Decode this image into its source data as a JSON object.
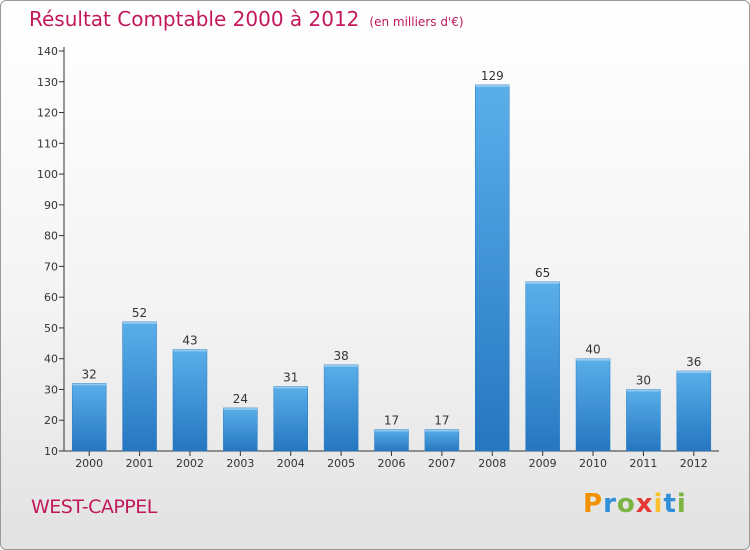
{
  "header": {
    "title": "Résultat Comptable 2000 à 2012",
    "subtitle": "(en milliers d'€)"
  },
  "footer": {
    "place": "WEST-CAPPEL",
    "logo_letters": [
      "P",
      "r",
      "o",
      "x",
      "i",
      "t",
      "i"
    ],
    "logo_colors": [
      "#f39200",
      "#2f8fd8",
      "#7cb342",
      "#e53935",
      "#fbc02d",
      "#2f8fd8",
      "#7cb342"
    ]
  },
  "chart_data": {
    "type": "bar",
    "categories": [
      "2000",
      "2001",
      "2002",
      "2003",
      "2004",
      "2005",
      "2006",
      "2007",
      "2008",
      "2009",
      "2010",
      "2011",
      "2012"
    ],
    "values": [
      32,
      52,
      43,
      24,
      31,
      38,
      17,
      17,
      129,
      65,
      40,
      30,
      36
    ],
    "title": "Résultat Comptable 2000 à 2012",
    "subtitle": "(en milliers d'€)",
    "xlabel": "",
    "ylabel": "",
    "ylim": [
      10,
      140
    ],
    "yticks": [
      10,
      20,
      30,
      40,
      50,
      60,
      70,
      80,
      90,
      100,
      110,
      120,
      130,
      140
    ],
    "grid": false,
    "bar_color": "#3b97e0",
    "value_labels": true
  }
}
